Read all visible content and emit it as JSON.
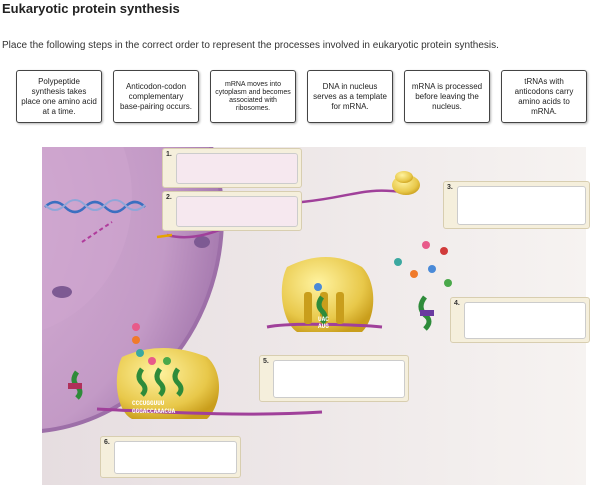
{
  "header": {
    "title": "Eukaryotic protein synthesis"
  },
  "instruction": "Place the following steps in the correct order to represent the processes involved in eukaryotic protein synthesis.",
  "cards": [
    "Polypeptide synthesis takes place one amino acid at a time.",
    "Anticodon-codon complementary base-pairing occurs.",
    "mRNA moves into cytoplasm and becomes associated with ribosomes.",
    "DNA in nucleus serves as a template for mRNA.",
    "mRNA is processed before leaving the nucleus.",
    "tRNAs with anticodons carry amino acids to mRNA."
  ],
  "drop_zones": [
    "1.",
    "2.",
    "3.",
    "4.",
    "5.",
    "6."
  ],
  "figure": {
    "codons": [
      "UAC",
      "AUG",
      "CCCUGGUUU",
      "GGGACCAAACUA"
    ]
  }
}
